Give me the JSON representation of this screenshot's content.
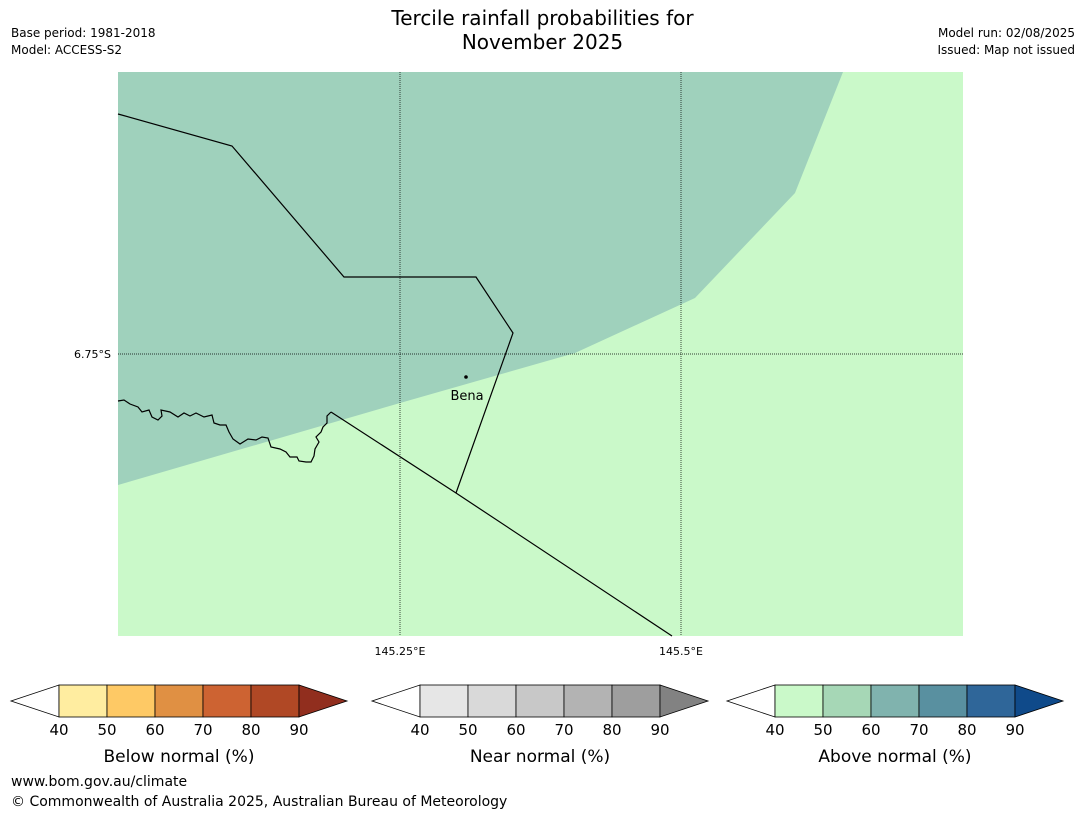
{
  "header": {
    "title_line1": "Tercile rainfall probabilities for",
    "title_line2": "November 2025",
    "base_period": "Base period: 1981-2018",
    "model": "Model: ACCESS-S2",
    "model_run": "Model run: 02/08/2025",
    "issued": "Issued: Map not issued"
  },
  "map": {
    "lat_label": "6.75°S",
    "lon_labels": [
      "145.25°E",
      "145.5°E"
    ],
    "place_label": "Bena",
    "colors": {
      "above_50_60": "#9fd1bc",
      "above_40_50": "#caf9c9"
    }
  },
  "legends": [
    {
      "title": "Below normal (%)",
      "ticks": [
        "40",
        "50",
        "60",
        "70",
        "80",
        "90"
      ],
      "colors": [
        "#ffffff",
        "#ffeda0",
        "#fec965",
        "#e09043",
        "#cd6332",
        "#b04825",
        "#912e1e"
      ]
    },
    {
      "title": "Near normal (%)",
      "ticks": [
        "40",
        "50",
        "60",
        "70",
        "80",
        "90"
      ],
      "colors": [
        "#ffffff",
        "#e6e6e6",
        "#d9d9d9",
        "#c8c8c8",
        "#b3b3b3",
        "#9e9e9e",
        "#828282"
      ]
    },
    {
      "title": "Above normal (%)",
      "ticks": [
        "40",
        "50",
        "60",
        "70",
        "80",
        "90"
      ],
      "colors": [
        "#ffffff",
        "#caf9c9",
        "#a6d7b6",
        "#80b3ae",
        "#5990a0",
        "#2f6699",
        "#0f4a8a"
      ]
    }
  ],
  "footer": {
    "url": "www.bom.gov.au/climate",
    "copyright": "© Commonwealth of Australia 2025, Australian Bureau of Meteorology"
  }
}
